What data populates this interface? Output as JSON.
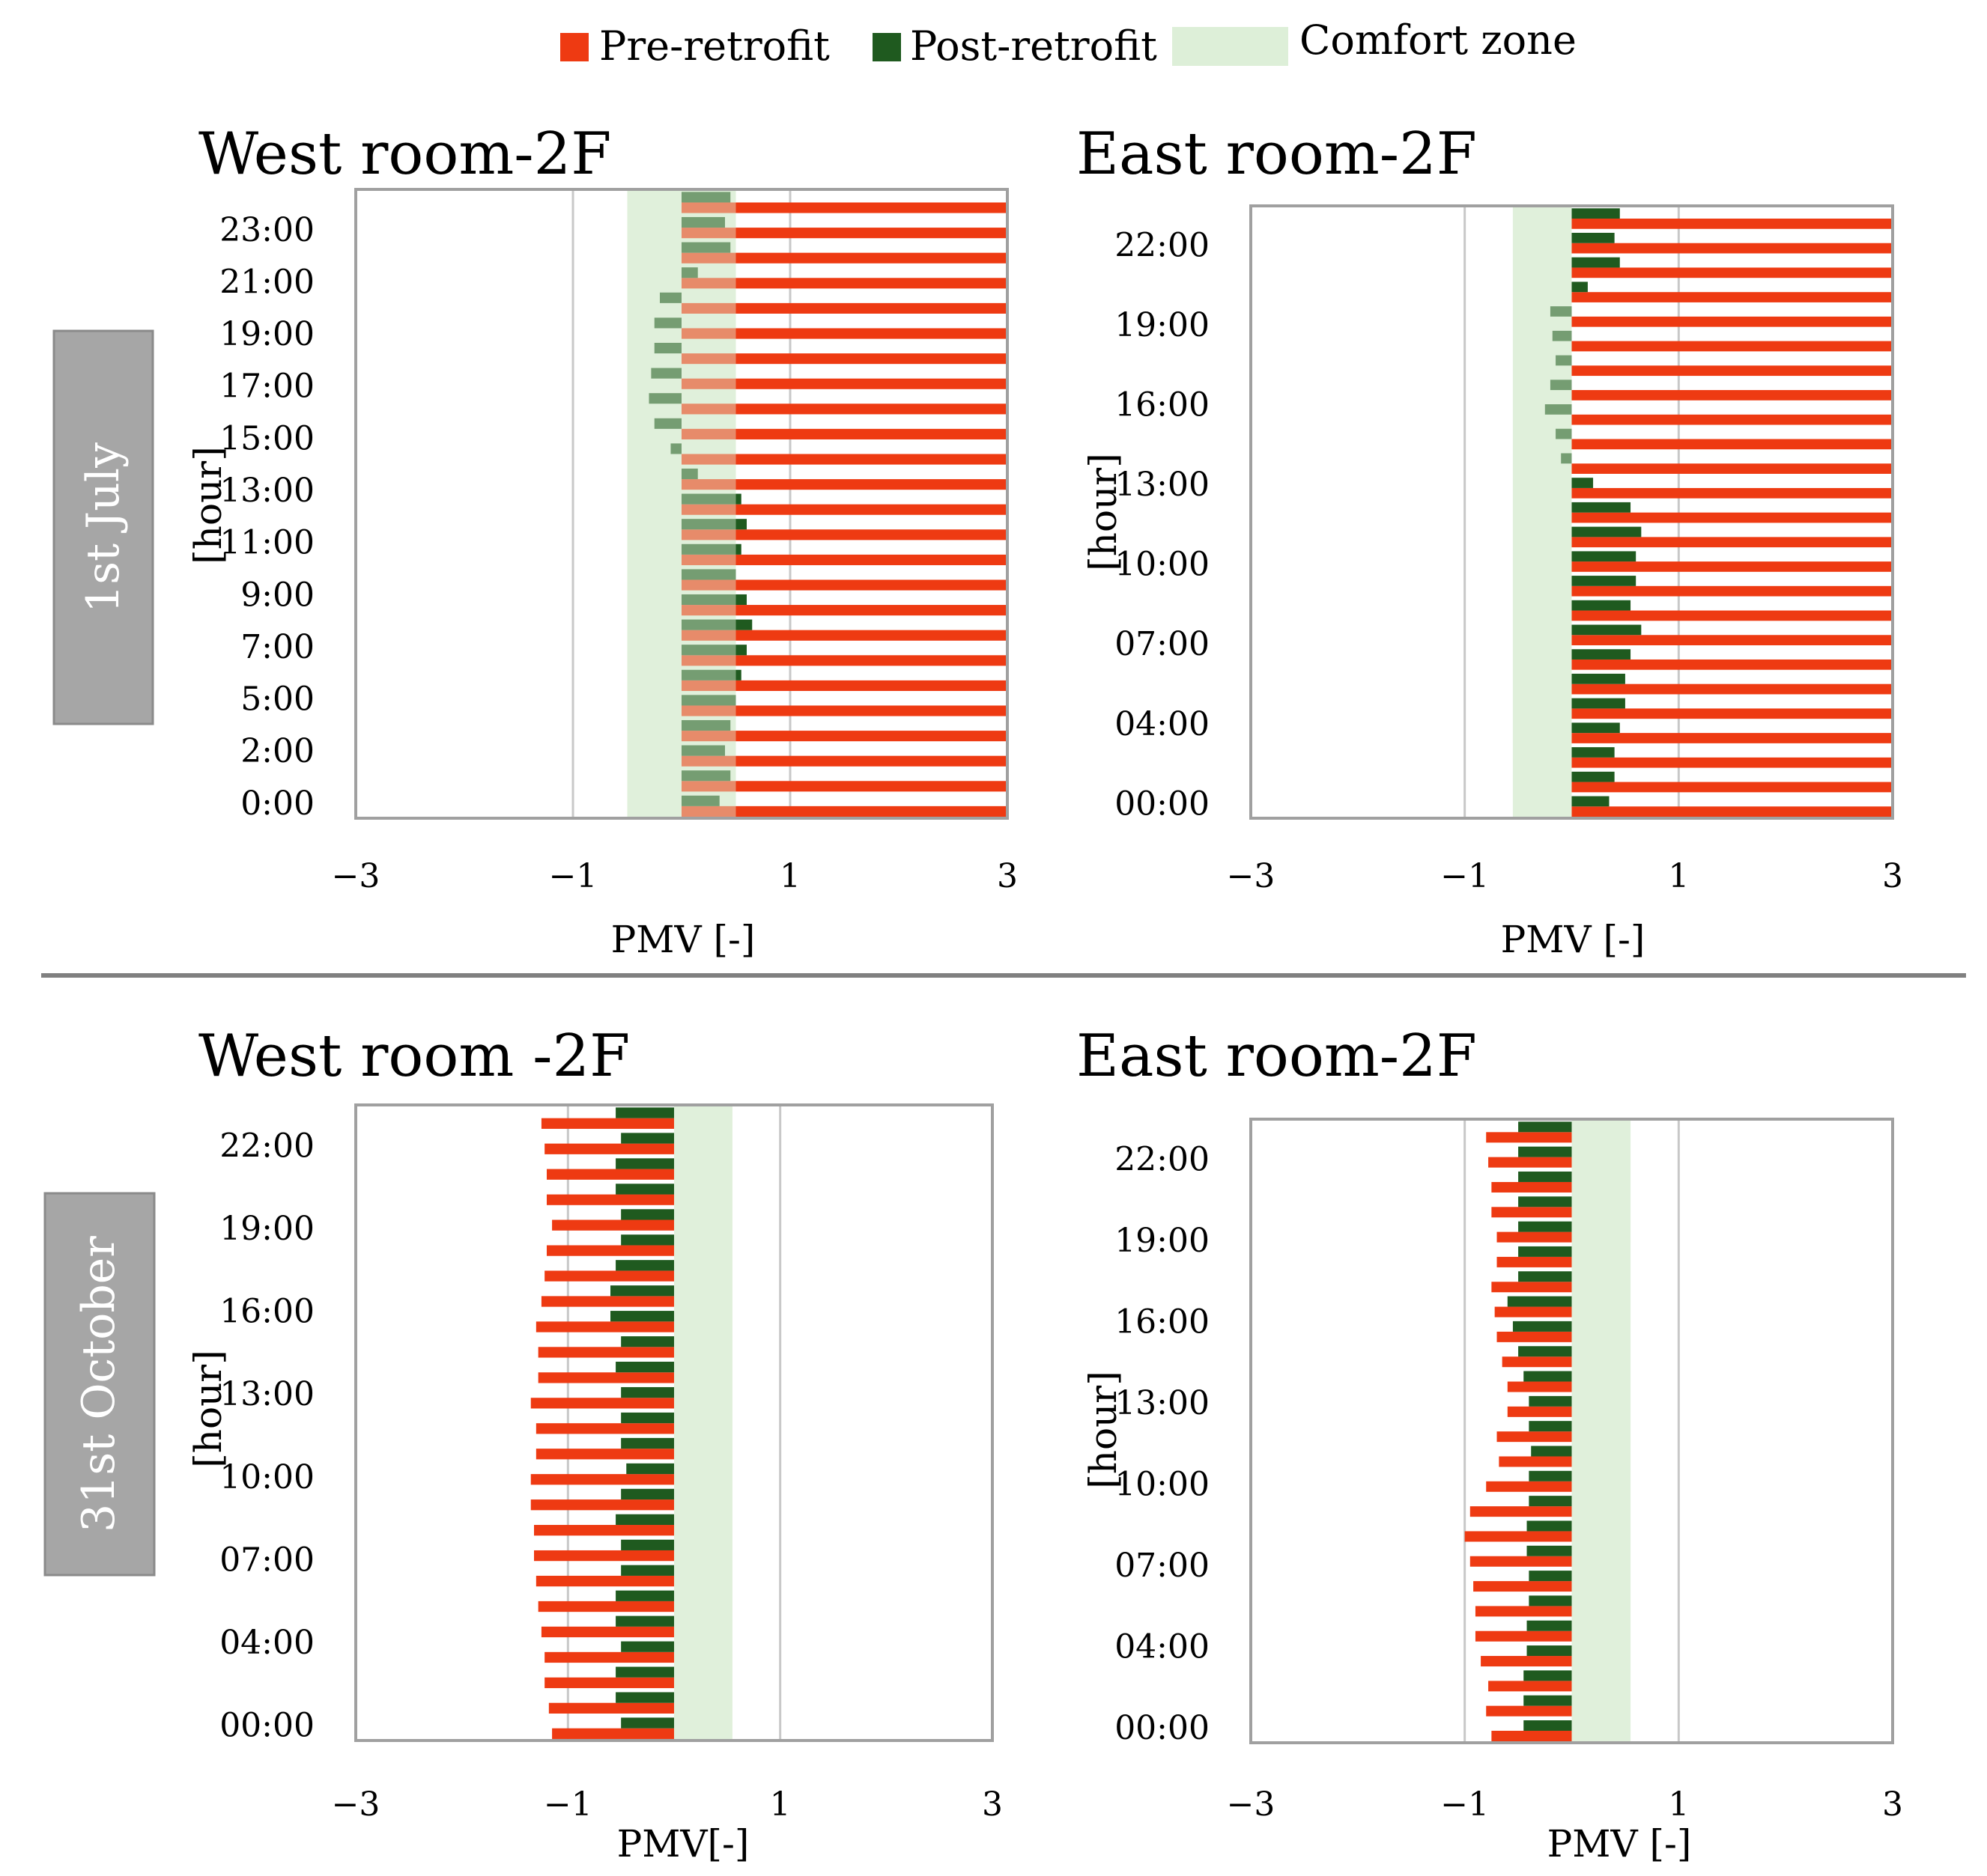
{
  "colors": {
    "pre": "#EE3A12",
    "post": "#1F5A1F",
    "comfort": "#DDEFD8",
    "date_box": "#A6A6A6",
    "frame": "#A0A0A0",
    "grid": "#C8C8C8",
    "separator": "#808080"
  },
  "legend": {
    "pre_label": "Pre-retrofit",
    "post_label": "Post-retrofit",
    "comfort_label": "Comfort zone"
  },
  "rows": {
    "july_label": "1st July",
    "october_label": "31st October"
  },
  "chart_data": [
    {
      "type": "bar",
      "orientation": "horizontal",
      "title": "West room-2F",
      "xlabel": "PMV [-]",
      "ylabel": "[hour]",
      "xlim": [
        -3,
        3
      ],
      "xticks": [
        "−3",
        "−1",
        "1",
        "3"
      ],
      "comfort_zone": [
        -0.5,
        0.5
      ],
      "yticks": [
        "0:00",
        "2:00",
        "5:00",
        "7:00",
        "9:00",
        "11:00",
        "13:00",
        "15:00",
        "17:00",
        "19:00",
        "21:00",
        "23:00"
      ],
      "series": [
        {
          "name": "Pre-retrofit",
          "values": [
            3,
            3,
            3,
            3,
            3,
            3,
            3,
            3,
            3,
            3,
            3,
            3,
            3,
            3,
            3,
            3,
            3,
            3,
            3,
            3,
            3,
            3,
            3,
            3,
            3
          ]
        },
        {
          "name": "Post-retrofit",
          "values": [
            0.35,
            0.45,
            0.4,
            0.45,
            0.5,
            0.55,
            0.6,
            0.65,
            0.6,
            0.5,
            0.55,
            0.6,
            0.55,
            0.15,
            -0.1,
            -0.25,
            -0.3,
            -0.28,
            -0.25,
            -0.25,
            -0.2,
            0.15,
            0.45,
            0.4,
            0.45
          ]
        }
      ]
    },
    {
      "type": "bar",
      "orientation": "horizontal",
      "title": "East room-2F",
      "xlabel": "PMV [-]",
      "ylabel": "[hour]",
      "xlim": [
        -3,
        3
      ],
      "xticks": [
        "−3",
        "−1",
        "1",
        "3"
      ],
      "comfort_zone": [
        -0.55,
        0
      ],
      "yticks": [
        "00:00",
        "04:00",
        "07:00",
        "10:00",
        "13:00",
        "16:00",
        "19:00",
        "22:00"
      ],
      "series": [
        {
          "name": "Pre-retrofit",
          "values": [
            3,
            3,
            3,
            3,
            3,
            3,
            3,
            3,
            3,
            3,
            3,
            3,
            3,
            3,
            3,
            3,
            3,
            3,
            3,
            3,
            3,
            3,
            3,
            3,
            3
          ]
        },
        {
          "name": "Post-retrofit",
          "values": [
            0.35,
            0.4,
            0.4,
            0.45,
            0.5,
            0.5,
            0.55,
            0.65,
            0.55,
            0.6,
            0.6,
            0.65,
            0.55,
            0.2,
            -0.1,
            -0.15,
            -0.25,
            -0.2,
            -0.15,
            -0.18,
            -0.2,
            0.15,
            0.45,
            0.4,
            0.45
          ]
        }
      ]
    },
    {
      "type": "bar",
      "orientation": "horizontal",
      "title": "West room -2F",
      "xlabel": "PMV[-]",
      "ylabel": "[hour]",
      "xlim": [
        -3,
        3
      ],
      "xticks": [
        "−3",
        "−1",
        "1",
        "3"
      ],
      "comfort_zone": [
        0,
        0.55
      ],
      "yticks": [
        "00:00",
        "04:00",
        "07:00",
        "10:00",
        "13:00",
        "16:00",
        "19:00",
        "22:00"
      ],
      "series": [
        {
          "name": "Pre-retrofit",
          "values": [
            -1.15,
            -1.18,
            -1.22,
            -1.22,
            -1.25,
            -1.28,
            -1.3,
            -1.32,
            -1.32,
            -1.35,
            -1.35,
            -1.3,
            -1.3,
            -1.35,
            -1.28,
            -1.28,
            -1.3,
            -1.25,
            -1.22,
            -1.2,
            -1.15,
            -1.2,
            -1.2,
            -1.22,
            -1.25
          ]
        },
        {
          "name": "Post-retrofit",
          "values": [
            -0.5,
            -0.55,
            -0.55,
            -0.5,
            -0.55,
            -0.55,
            -0.5,
            -0.5,
            -0.55,
            -0.5,
            -0.45,
            -0.5,
            -0.5,
            -0.5,
            -0.55,
            -0.5,
            -0.6,
            -0.6,
            -0.55,
            -0.5,
            -0.5,
            -0.55,
            -0.55,
            -0.5,
            -0.55
          ]
        }
      ]
    },
    {
      "type": "bar",
      "orientation": "horizontal",
      "title": "East room-2F",
      "xlabel": "PMV [-]",
      "ylabel": "[hour]",
      "xlim": [
        -3,
        3
      ],
      "xticks": [
        "−3",
        "−1",
        "1",
        "3"
      ],
      "comfort_zone": [
        0,
        0.55
      ],
      "yticks": [
        "00:00",
        "04:00",
        "07:00",
        "10:00",
        "13:00",
        "16:00",
        "19:00",
        "22:00"
      ],
      "series": [
        {
          "name": "Pre-retrofit",
          "values": [
            -0.75,
            -0.8,
            -0.78,
            -0.85,
            -0.9,
            -0.9,
            -0.92,
            -0.95,
            -1.0,
            -0.95,
            -0.8,
            -0.68,
            -0.7,
            -0.6,
            -0.6,
            -0.65,
            -0.7,
            -0.72,
            -0.75,
            -0.7,
            -0.7,
            -0.75,
            -0.75,
            -0.78,
            -0.8
          ]
        },
        {
          "name": "Post-retrofit",
          "values": [
            -0.45,
            -0.45,
            -0.45,
            -0.42,
            -0.42,
            -0.4,
            -0.4,
            -0.42,
            -0.42,
            -0.4,
            -0.4,
            -0.38,
            -0.4,
            -0.4,
            -0.45,
            -0.5,
            -0.55,
            -0.6,
            -0.5,
            -0.5,
            -0.5,
            -0.5,
            -0.5,
            -0.5,
            -0.5
          ]
        }
      ]
    }
  ]
}
